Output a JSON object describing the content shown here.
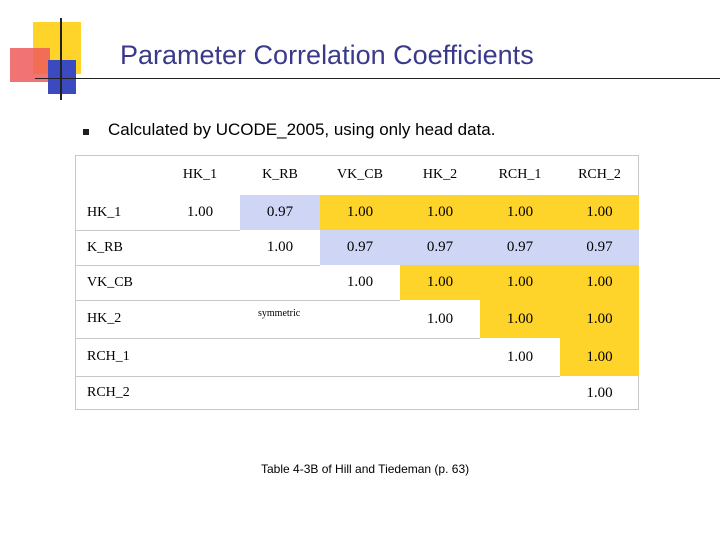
{
  "slide": {
    "title": "Parameter Correlation Coefficients",
    "bullet": "Calculated by UCODE_2005, using only head data.",
    "caption": "Table 4-3B of Hill and Tiedeman (p. 63)",
    "symmetric_note": "symmetric"
  },
  "colors": {
    "title": "#3a3a8c",
    "highlight_yellow": "#ffd42a",
    "highlight_lavender": "#cfd6f5",
    "deco_yellow": "#ffd42a",
    "deco_red": "#ef5a5a",
    "deco_blue": "#3b4bbf"
  },
  "table": {
    "columns": [
      "HK_1",
      "K_RB",
      "VK_CB",
      "HK_2",
      "RCH_1",
      "RCH_2"
    ],
    "rows": [
      {
        "label": "HK_1",
        "cells": [
          "1.00",
          "0.97",
          "1.00",
          "1.00",
          "1.00",
          "1.00"
        ]
      },
      {
        "label": "K_RB",
        "cells": [
          "",
          "1.00",
          "0.97",
          "0.97",
          "0.97",
          "0.97"
        ]
      },
      {
        "label": "VK_CB",
        "cells": [
          "",
          "",
          "1.00",
          "1.00",
          "1.00",
          "1.00"
        ]
      },
      {
        "label": "HK_2",
        "cells": [
          "",
          "",
          "",
          "1.00",
          "1.00",
          "1.00"
        ]
      },
      {
        "label": "RCH_1",
        "cells": [
          "",
          "",
          "",
          "",
          "1.00",
          "1.00"
        ]
      },
      {
        "label": "RCH_2",
        "cells": [
          "",
          "",
          "",
          "",
          "",
          "1.00"
        ]
      }
    ]
  }
}
